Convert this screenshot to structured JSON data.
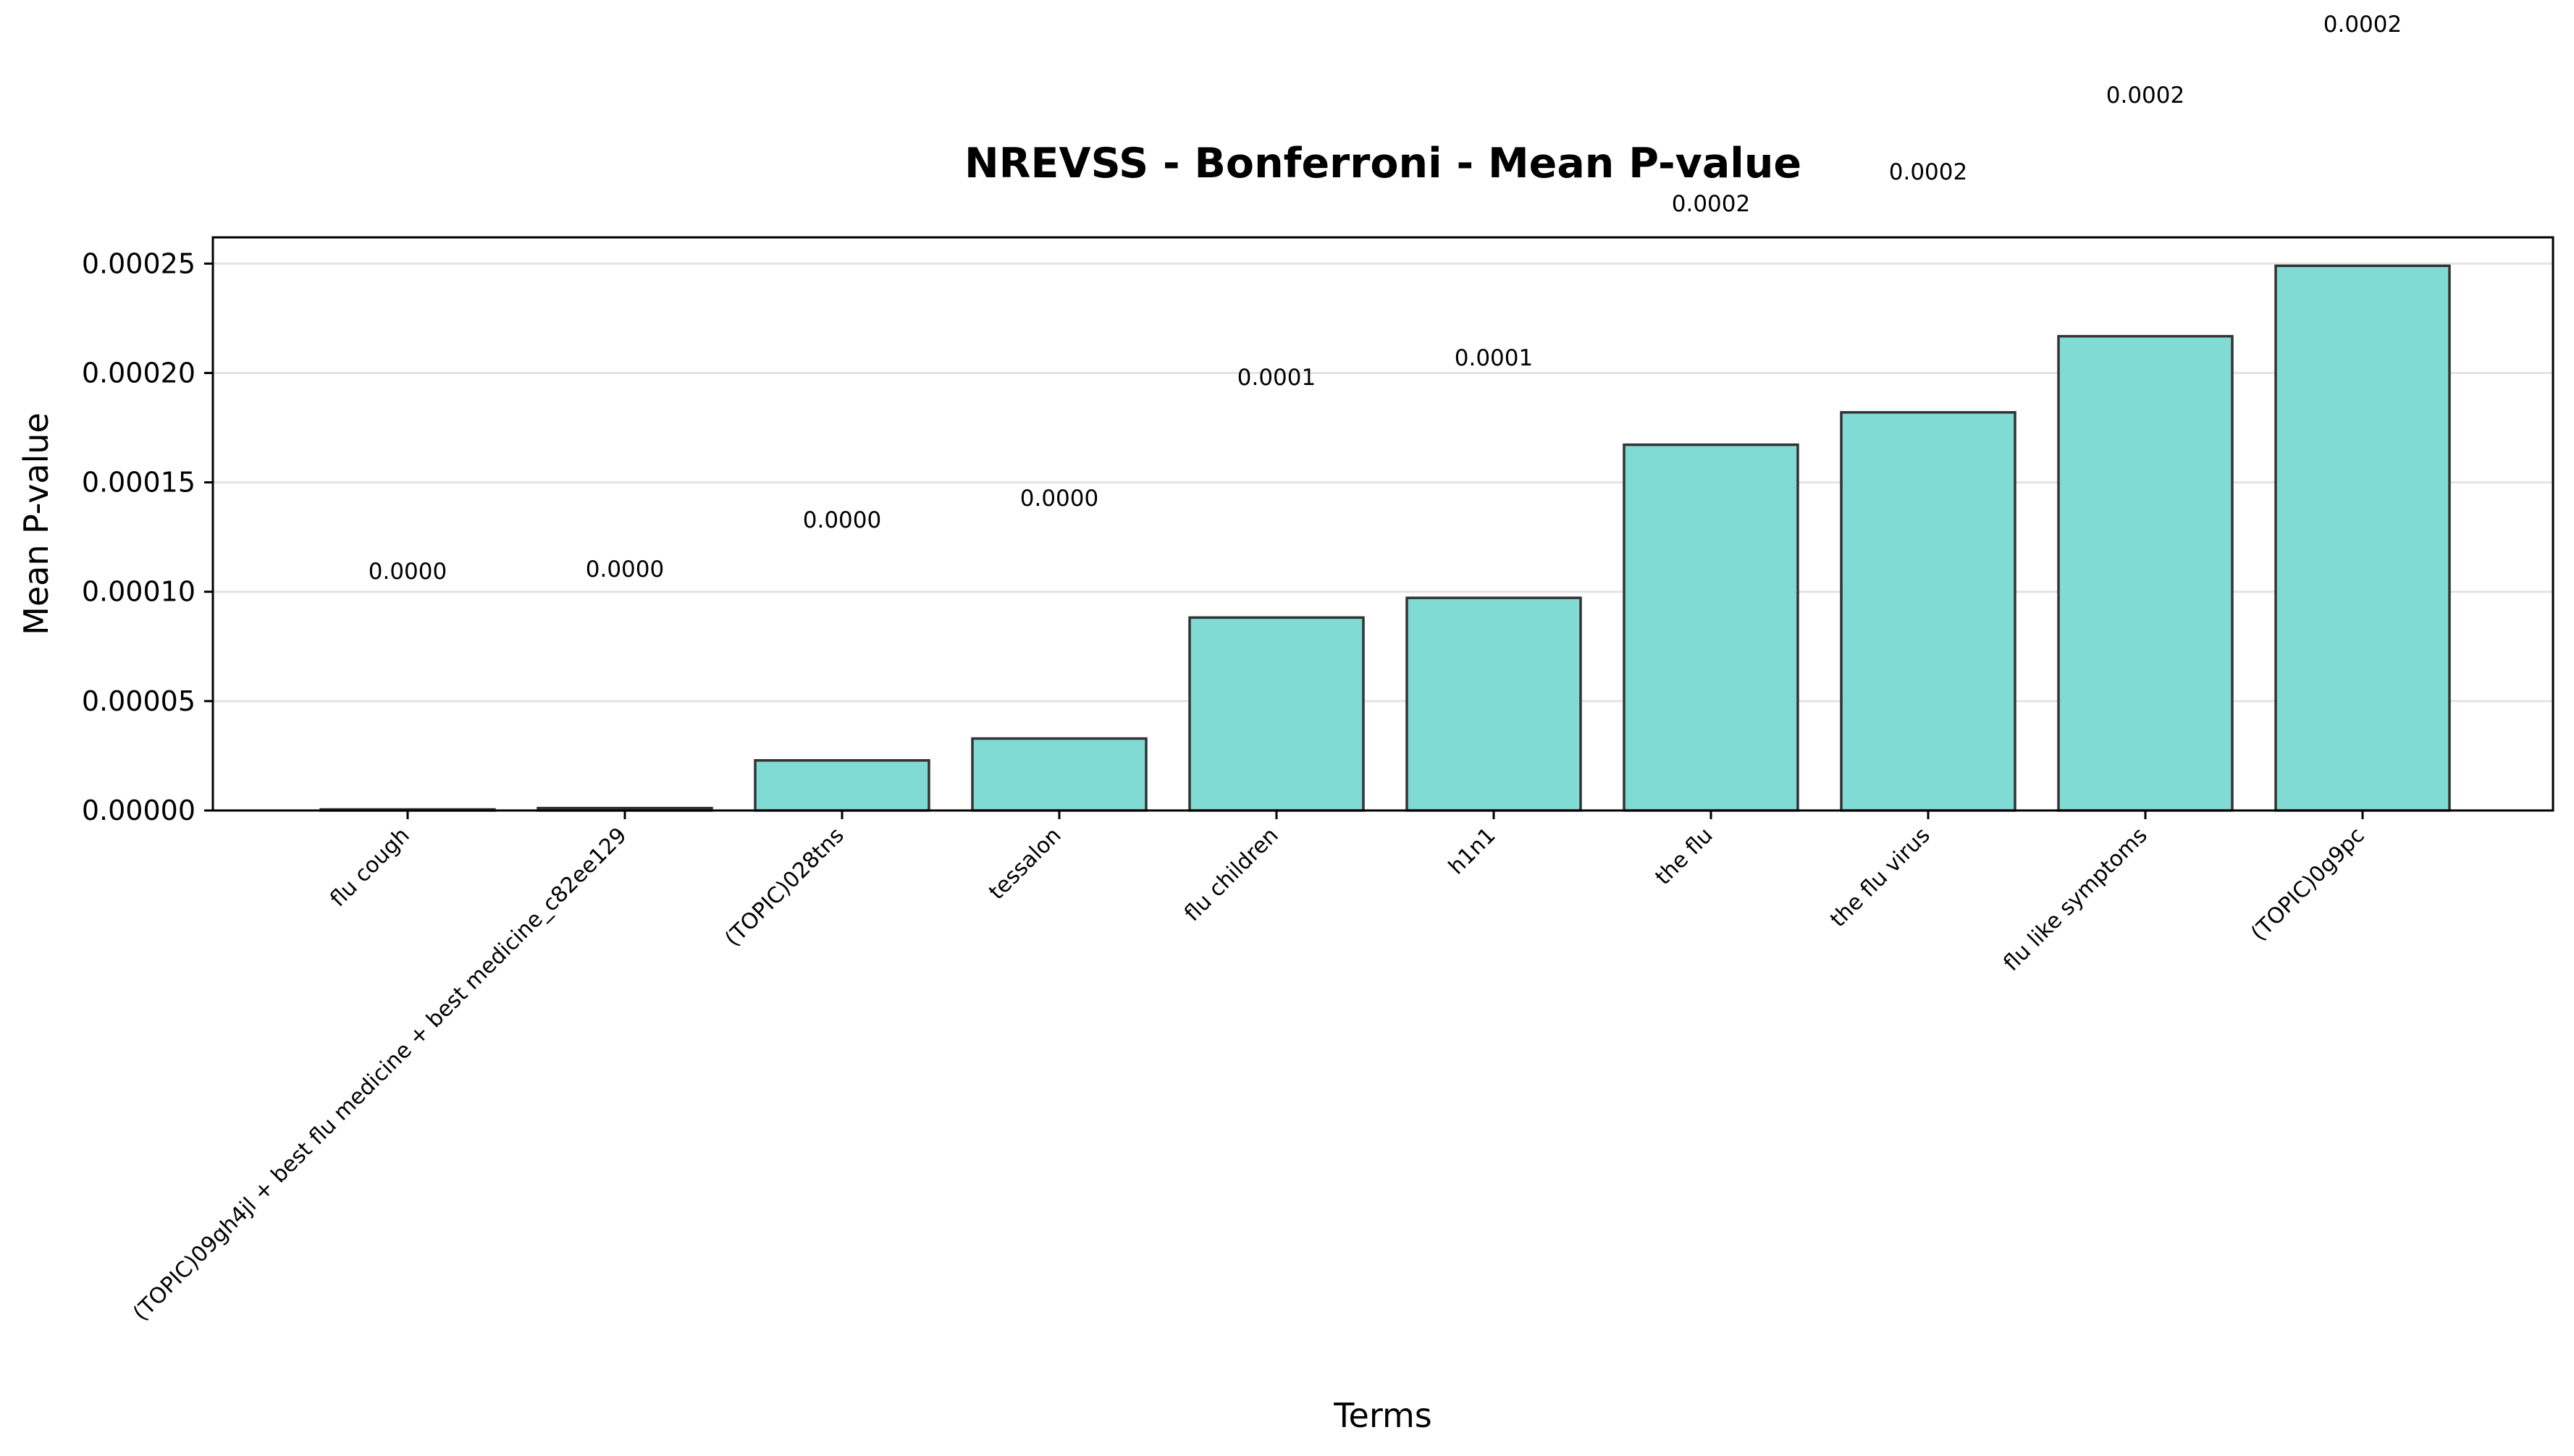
{
  "chart_data": {
    "type": "bar",
    "title": "NREVSS - Bonferroni - Mean P-value",
    "xlabel": "Terms",
    "ylabel": "Mean P-value",
    "categories": [
      "flu cough",
      "(TOPIC)09gh4jl + best flu medicine + best medicine_c82ee129",
      "(TOPIC)028tns",
      "tessalon",
      "flu children",
      "h1n1",
      "the flu",
      "the flu virus",
      "flu like symptoms",
      "(TOPIC)0g9pc"
    ],
    "values": [
      3e-07,
      1.1e-06,
      2.29e-05,
      3.29e-05,
      8.82e-05,
      9.72e-05,
      0.0001672,
      0.000182,
      0.0002168,
      0.000249
    ],
    "data_labels": [
      "0.0000",
      "0.0000",
      "0.0000",
      "0.0000",
      "0.0001",
      "0.0001",
      "0.0002",
      "0.0002",
      "0.0002",
      "0.0002"
    ],
    "yticks": [
      "0.00000",
      "0.00005",
      "0.00010",
      "0.00015",
      "0.00020",
      "0.00025"
    ],
    "ytick_values": [
      0,
      5e-05,
      0.0001,
      0.00015,
      0.0002,
      0.00025
    ],
    "ylim": [
      0,
      0.000262
    ],
    "grid": "y",
    "bar_color": "#7fdbd3",
    "bar_edge_color": "#333333"
  }
}
